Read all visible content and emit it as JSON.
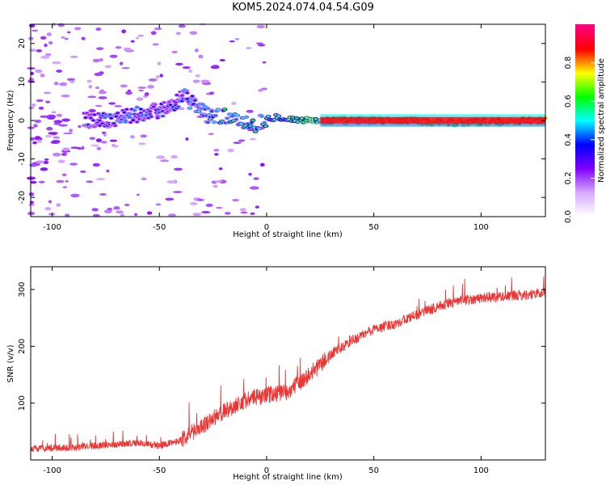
{
  "title": "KOM5.2024.074.04.54.G09",
  "chart_data": [
    {
      "type": "heatmap",
      "xlabel": "Height of straight line (km)",
      "ylabel": "Frequency (Hz)",
      "xlim": [
        -110,
        130
      ],
      "ylim": [
        -25,
        25
      ],
      "x_ticks": [
        -100,
        -50,
        0,
        50,
        100
      ],
      "y_ticks": [
        -20,
        -10,
        0,
        10,
        20
      ],
      "colorbar": {
        "label": "Normalized spectral amplitude",
        "range": [
          0,
          1
        ],
        "ticks": [
          0.0,
          0.2,
          0.4,
          0.6,
          0.8
        ],
        "tick_labels": [
          "0.0",
          "0.2",
          "0.4",
          "0.6",
          "0.8"
        ],
        "colormap": [
          "#ffffff",
          "#d8a8ff",
          "#8000ff",
          "#0000ff",
          "#00ffff",
          "#00ff00",
          "#ffff00",
          "#ff0000",
          "#ff0080"
        ]
      },
      "ridge": [
        {
          "x": -80,
          "f": 0,
          "a": 0.3
        },
        {
          "x": -65,
          "f": 1,
          "a": 0.35
        },
        {
          "x": -55,
          "f": 2,
          "a": 0.3
        },
        {
          "x": -45,
          "f": 3.5,
          "a": 0.3
        },
        {
          "x": -38,
          "f": 6,
          "a": 0.35
        },
        {
          "x": -33,
          "f": 4,
          "a": 0.4
        },
        {
          "x": -28,
          "f": 1.5,
          "a": 0.45
        },
        {
          "x": -20,
          "f": 1,
          "a": 0.5
        },
        {
          "x": -10,
          "f": 0,
          "a": 0.55
        },
        {
          "x": -5,
          "f": -1,
          "a": 0.5
        },
        {
          "x": 0,
          "f": 0.5,
          "a": 0.55
        },
        {
          "x": 5,
          "f": 1,
          "a": 0.6
        },
        {
          "x": 15,
          "f": 0,
          "a": 0.7
        },
        {
          "x": 30,
          "f": 0,
          "a": 0.8
        },
        {
          "x": 60,
          "f": 0,
          "a": 0.9
        },
        {
          "x": 90,
          "f": -0.5,
          "a": 0.95
        },
        {
          "x": 130,
          "f": 0,
          "a": 0.95
        }
      ]
    },
    {
      "type": "line",
      "xlabel": "Height of straight line (km)",
      "ylabel": "SNR (v/v)",
      "xlim": [
        -110,
        130
      ],
      "ylim": [
        0,
        340
      ],
      "x_ticks": [
        -100,
        -50,
        0,
        50,
        100
      ],
      "y_ticks": [
        100,
        200,
        300
      ],
      "color": "#ee3333",
      "trend": {
        "x": [
          -110,
          -90,
          -70,
          -60,
          -50,
          -40,
          -30,
          -20,
          -10,
          0,
          10,
          20,
          30,
          40,
          50,
          60,
          70,
          80,
          90,
          100,
          110,
          120,
          130
        ],
        "y": [
          20,
          22,
          28,
          30,
          25,
          35,
          60,
          85,
          105,
          115,
          120,
          150,
          185,
          210,
          230,
          240,
          255,
          270,
          280,
          285,
          288,
          290,
          295
        ]
      }
    }
  ]
}
